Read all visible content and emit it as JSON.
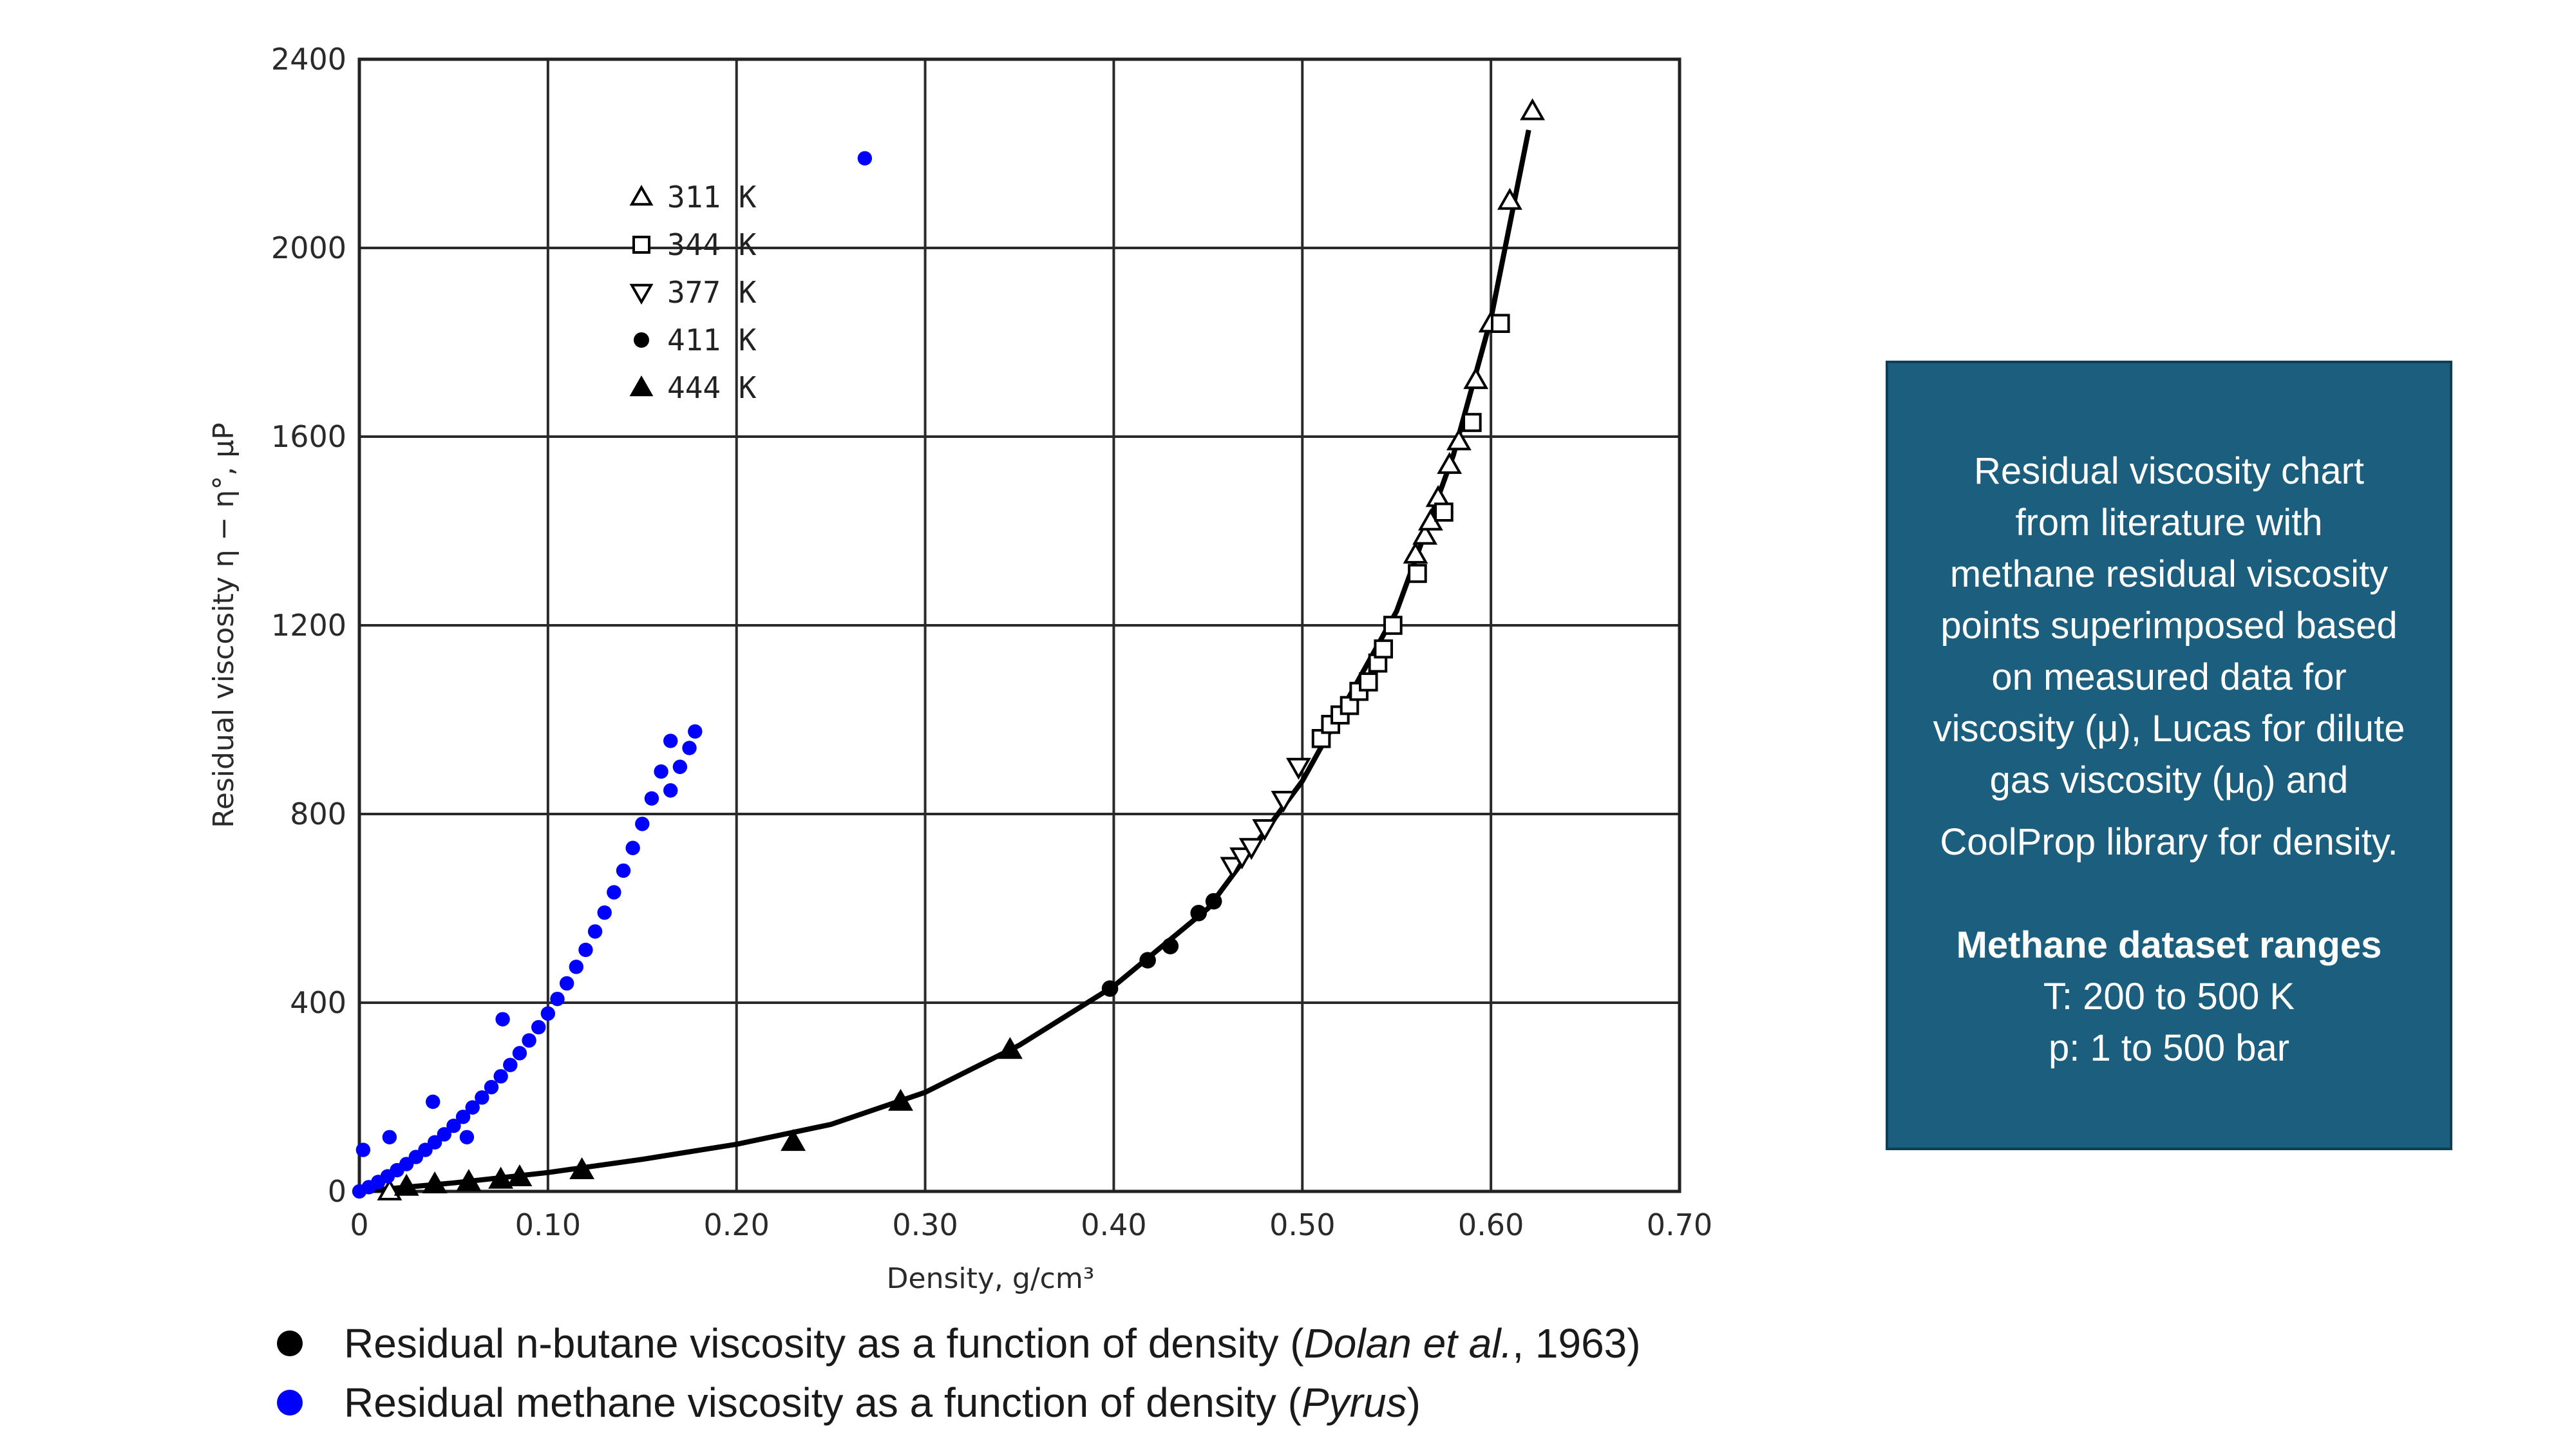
{
  "chart_data": {
    "type": "scatter",
    "xlabel": "Density, g/cm³",
    "ylabel": "Residual viscosity η − η°, μP",
    "xlim": [
      0,
      0.7
    ],
    "ylim": [
      0,
      2400
    ],
    "x_ticks": [
      "0",
      "0.10",
      "0.20",
      "0.30",
      "0.40",
      "0.50",
      "0.60",
      "0.70"
    ],
    "y_ticks": [
      "0",
      "400",
      "800",
      "1200",
      "1600",
      "2000",
      "2400"
    ],
    "grid": true,
    "legend_position": "top-left",
    "legend": [
      {
        "label": "311 K",
        "marker": "triangle-up-open"
      },
      {
        "label": "344 K",
        "marker": "square-open"
      },
      {
        "label": "377 K",
        "marker": "triangle-down-open"
      },
      {
        "label": "411 K",
        "marker": "circle-filled"
      },
      {
        "label": "444 K",
        "marker": "triangle-up-filled"
      }
    ],
    "curve": {
      "x": [
        0,
        0.05,
        0.1,
        0.15,
        0.2,
        0.25,
        0.3,
        0.35,
        0.4,
        0.45,
        0.5,
        0.55,
        0.58,
        0.6,
        0.62
      ],
      "y": [
        0,
        18,
        40,
        68,
        100,
        142,
        210,
        310,
        435,
        600,
        870,
        1230,
        1560,
        1850,
        2250
      ]
    },
    "series": [
      {
        "marker": "triangle-up-open",
        "color": "#000000",
        "x": [
          0.016,
          0.56,
          0.565,
          0.568,
          0.572,
          0.578,
          0.583,
          0.592,
          0.6,
          0.61,
          0.622
        ],
        "y": [
          0,
          1350,
          1390,
          1420,
          1470,
          1540,
          1590,
          1720,
          1840,
          2100,
          2290
        ]
      },
      {
        "marker": "square-open",
        "color": "#000000",
        "x": [
          0.51,
          0.515,
          0.52,
          0.525,
          0.53,
          0.535,
          0.54,
          0.543,
          0.548,
          0.561,
          0.575,
          0.59,
          0.605
        ],
        "y": [
          960,
          990,
          1010,
          1030,
          1060,
          1080,
          1120,
          1150,
          1200,
          1310,
          1440,
          1630,
          1840
        ]
      },
      {
        "marker": "triangle-down-open",
        "color": "#000000",
        "x": [
          0.463,
          0.468,
          0.473,
          0.48,
          0.49,
          0.498
        ],
        "y": [
          690,
          710,
          730,
          770,
          830,
          900
        ]
      },
      {
        "marker": "circle-filled",
        "color": "#000000",
        "x": [
          0.398,
          0.418,
          0.43,
          0.445,
          0.453
        ],
        "y": [
          430,
          490,
          520,
          590,
          615
        ]
      },
      {
        "marker": "triangle-up-filled",
        "color": "#000000",
        "x": [
          0.025,
          0.04,
          0.058,
          0.075,
          0.085,
          0.118,
          0.23,
          0.287,
          0.345
        ],
        "y": [
          10,
          15,
          20,
          25,
          30,
          45,
          105,
          190,
          300
        ]
      },
      {
        "marker": "circle-filled",
        "color": "#0000ff",
        "name": "Residual methane viscosity as a function of density (Pyrus)",
        "x": [
          0.268,
          0.165,
          0.076,
          0.039,
          0.016,
          0.002,
          0.057,
          0.0,
          0.005,
          0.01,
          0.015,
          0.02,
          0.025,
          0.03,
          0.035,
          0.04,
          0.045,
          0.05,
          0.055,
          0.06,
          0.065,
          0.07,
          0.075,
          0.08,
          0.085,
          0.09,
          0.095,
          0.1,
          0.105,
          0.11,
          0.115,
          0.12,
          0.125,
          0.13,
          0.135,
          0.14,
          0.145,
          0.15,
          0.155,
          0.16,
          0.165,
          0.17,
          0.175,
          0.178
        ],
        "y": [
          2190,
          955,
          365,
          190,
          115,
          88,
          115,
          0,
          9,
          20,
          32,
          45,
          58,
          73,
          88,
          104,
          121,
          139,
          158,
          178,
          199,
          221,
          244,
          268,
          293,
          320,
          348,
          377,
          408,
          441,
          476,
          512,
          551,
          591,
          634,
          680,
          728,
          779,
          833,
          890,
          850,
          900,
          940,
          975
        ]
      }
    ]
  },
  "info_box": {
    "lines": [
      "Residual viscosity chart",
      "from literature with",
      "methane residual viscosity",
      "points superimposed based",
      "on measured data for",
      "viscosity (μ), Lucas for dilute"
    ],
    "line7_before": "gas viscosity (μ",
    "line7_sub": "0",
    "line7_after": ") and",
    "line8": "CoolProp library for density.",
    "heading": "Methane dataset ranges",
    "range_t": "T: 200 to 500 K",
    "range_p": "p: 1 to 500 bar"
  },
  "bottom_legend": {
    "row1_text": "Residual n-butane viscosity as a function of density (",
    "row1_italic": "Dolan et al.",
    "row1_after": ", 1963)",
    "row1_color": "#000000",
    "row2_text": "Residual methane viscosity as a function of density (",
    "row2_italic": "Pyrus",
    "row2_after": ")",
    "row2_color": "#0000ff"
  }
}
